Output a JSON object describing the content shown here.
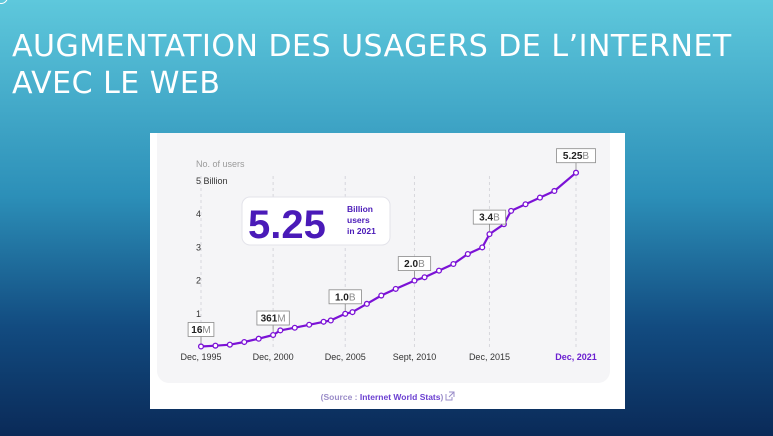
{
  "slide": {
    "title": "AUGMENTATION DES USAGERS DE L’INTERNET AVEC LE WEB"
  },
  "chart_data": {
    "type": "line",
    "ylabel": "No. of users",
    "yticks": [
      "5 Billion",
      "4",
      "3",
      "2",
      "1"
    ],
    "ytick_values": [
      5,
      4,
      3,
      2,
      1
    ],
    "ylim": [
      0,
      5.5
    ],
    "xlim": [
      1995.9,
      2021.9
    ],
    "xtick_labels": [
      "Dec, 1995",
      "Dec, 2000",
      "Dec, 2005",
      "Sept, 2010",
      "Dec, 2015",
      "Dec, 2021"
    ],
    "xtick_values": [
      1995.9,
      2000.9,
      2005.9,
      2010.7,
      2015.9,
      2021.9
    ],
    "series": [
      {
        "color": "#7b12d6",
        "points": [
          [
            1995.9,
            0.016
          ],
          [
            1996.9,
            0.04
          ],
          [
            1997.9,
            0.07
          ],
          [
            1998.9,
            0.15
          ],
          [
            1999.9,
            0.25
          ],
          [
            2000.9,
            0.361
          ],
          [
            2001.4,
            0.5
          ],
          [
            2002.4,
            0.58
          ],
          [
            2003.4,
            0.67
          ],
          [
            2004.4,
            0.76
          ],
          [
            2004.9,
            0.8
          ],
          [
            2005.9,
            1.0
          ],
          [
            2006.4,
            1.05
          ],
          [
            2007.4,
            1.3
          ],
          [
            2008.4,
            1.55
          ],
          [
            2009.4,
            1.75
          ],
          [
            2010.7,
            2.0
          ],
          [
            2011.4,
            2.1
          ],
          [
            2012.4,
            2.3
          ],
          [
            2013.4,
            2.5
          ],
          [
            2014.4,
            2.8
          ],
          [
            2015.4,
            3.0
          ],
          [
            2015.9,
            3.4
          ],
          [
            2016.9,
            3.7
          ],
          [
            2017.4,
            4.1
          ],
          [
            2018.4,
            4.3
          ],
          [
            2019.4,
            4.5
          ],
          [
            2020.4,
            4.7
          ],
          [
            2021.9,
            5.25
          ]
        ]
      }
    ],
    "callouts": [
      {
        "x": 1995.9,
        "y": 0.016,
        "bold": "16",
        "unit": "M"
      },
      {
        "x": 2000.9,
        "y": 0.361,
        "bold": "361",
        "unit": "M"
      },
      {
        "x": 2005.9,
        "y": 1.0,
        "bold": "1.0",
        "unit": "B"
      },
      {
        "x": 2010.7,
        "y": 2.0,
        "bold": "2.0",
        "unit": "B"
      },
      {
        "x": 2015.9,
        "y": 3.4,
        "bold": "3.4",
        "unit": "B"
      },
      {
        "x": 2021.9,
        "y": 5.25,
        "bold": "5.25",
        "unit": "B"
      }
    ],
    "highlight": {
      "value": "5.25",
      "line1": "Billion",
      "line2": "users",
      "line3": "in 2021"
    },
    "source": {
      "prefix": "(Source : ",
      "name": "Internet World Stats",
      "suffix": ")"
    },
    "grid": true,
    "colors": {
      "line": "#7b12d6",
      "highlight_text": "#4a1ab8",
      "last_label": "#6a1fd0",
      "axis_text": "#333333",
      "muted": "#9a9a9a",
      "source": "#6b3fd1"
    }
  }
}
